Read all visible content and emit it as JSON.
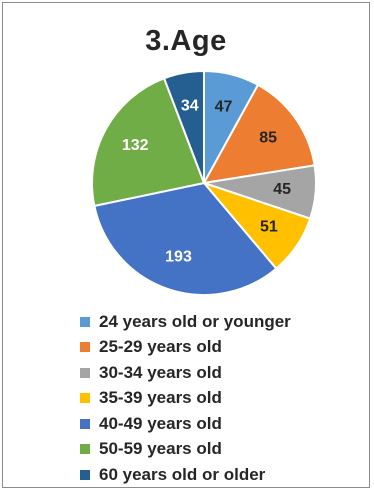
{
  "chart_data": {
    "type": "pie",
    "title": "3.Age",
    "legend_position": "bottom",
    "slices": [
      {
        "label": "24 years old or younger",
        "value": 47,
        "color": "#5B9BD5",
        "label_color": "#262626"
      },
      {
        "label": "25-29 years old",
        "value": 85,
        "color": "#ED7D31",
        "label_color": "#262626"
      },
      {
        "label": "30-34 years old",
        "value": 45,
        "color": "#A5A5A5",
        "label_color": "#262626"
      },
      {
        "label": "35-39 years old",
        "value": 51,
        "color": "#FFC000",
        "label_color": "#262626"
      },
      {
        "label": "40-49 years old",
        "value": 193,
        "color": "#4472C4",
        "label_color": "#ffffff"
      },
      {
        "label": "50-59 years old",
        "value": 132,
        "color": "#70AD47",
        "label_color": "#ffffff"
      },
      {
        "label": "60 years old or older",
        "value": 34,
        "color": "#255E91",
        "label_color": "#ffffff"
      }
    ]
  }
}
